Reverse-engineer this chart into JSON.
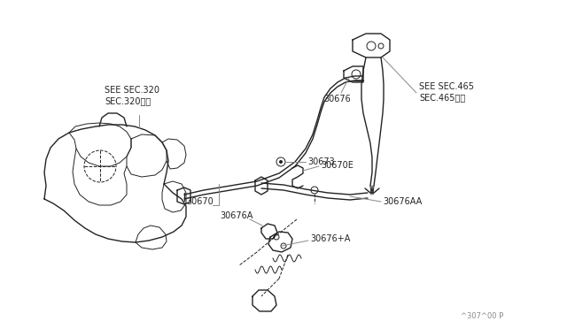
{
  "bg_color": "#ffffff",
  "line_color": "#222222",
  "gray_color": "#888888",
  "labels": {
    "see_sec320": "SEE SEC.320\nSEC.320参照",
    "30670": "30670",
    "30673": "30673",
    "30670E": "30670E",
    "30676": "30676",
    "see_sec465": "SEE SEC.465\nSEC.465参照",
    "30676AA": "30676AA",
    "30676A": "30676A",
    "30676pA": "30676+A",
    "part_no": "^307^00 P"
  },
  "lw": 1.0,
  "tlw": 0.7
}
